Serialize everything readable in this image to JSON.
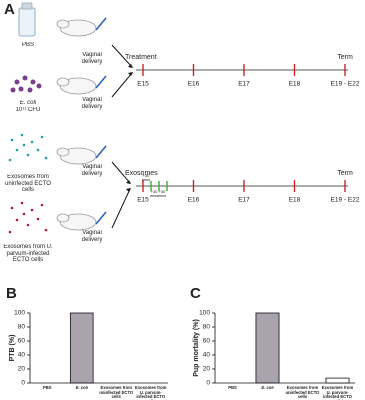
{
  "panel_a": {
    "label": "A",
    "groups": [
      {
        "name": "PBS",
        "route": "Vaginal delivery"
      },
      {
        "name": "E. coli",
        "dose": "10¹¹ CFU",
        "route": "Vaginal delivery"
      },
      {
        "name": "Exosomes from uninfected ECTO cells",
        "route": "Vaginal delivery"
      },
      {
        "name": "Exosomes from U. parvum-infected ECTO cells",
        "route": "Vaginal delivery"
      }
    ],
    "timelines": [
      {
        "start": "Treatment",
        "end": "Term",
        "days": [
          "E15",
          "E16",
          "E17",
          "E18",
          "E19 - E22"
        ]
      },
      {
        "start": "Exosomes",
        "end": "Term",
        "intervals": [
          "+30 mins",
          "+30 mins",
          "+30 mins"
        ],
        "days": [
          "E15",
          "E16",
          "E17",
          "E18",
          "E19 - E22"
        ]
      }
    ]
  },
  "chart_data": [
    {
      "type": "bar",
      "panel": "B",
      "ylabel": "PTB (%)",
      "categories": [
        "PBS",
        "E. coli",
        "Exosomes from uninfected ECTO cells",
        "Exosomes from U. parvum-infected ECTO cells"
      ],
      "values": [
        0,
        100,
        0,
        0
      ],
      "colors": [
        "#ffffff",
        "#a8a3ad",
        "#ffffff",
        "#ffffff"
      ],
      "ylim": [
        0,
        100
      ],
      "yticks": [
        0,
        20,
        40,
        60,
        80,
        100
      ]
    },
    {
      "type": "bar",
      "panel": "C",
      "ylabel": "Pup mortality (%)",
      "categories": [
        "PBS",
        "E. coli",
        "Exosomes from uninfected ECTO cells",
        "Exosomes from U. parvum-infected ECTO cells"
      ],
      "values": [
        0,
        100,
        0,
        7
      ],
      "colors": [
        "#ffffff",
        "#a8a3ad",
        "#ffffff",
        "#ffffff"
      ],
      "ylim": [
        0,
        100
      ],
      "yticks": [
        0,
        20,
        40,
        60,
        80,
        100
      ]
    }
  ]
}
